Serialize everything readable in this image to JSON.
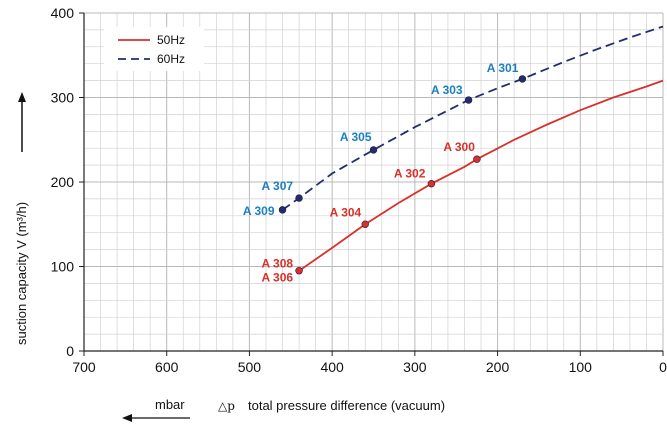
{
  "chart_data": {
    "type": "line",
    "xlabel_unit": "mbar",
    "xlabel_prefix": "△p",
    "xlabel": "total pressure difference (vacuum)",
    "ylabel": "suction capacity V (m³/h)",
    "xlim": [
      700,
      0
    ],
    "ylim": [
      0,
      400
    ],
    "x_ticks": [
      700,
      600,
      500,
      400,
      300,
      200,
      100,
      0
    ],
    "y_ticks": [
      0,
      100,
      200,
      300,
      400
    ],
    "grid": true,
    "legend_position": "top-left",
    "series": [
      {
        "name": "50Hz",
        "color": "#d9302b",
        "style": "solid",
        "x": [
          440,
          400,
          360,
          320,
          280,
          240,
          225,
          180,
          140,
          100,
          60,
          20,
          0
        ],
        "y": [
          95,
          122,
          150,
          175,
          198,
          218,
          227,
          250,
          268,
          285,
          300,
          313,
          320
        ],
        "points": [
          {
            "label": "A 308",
            "x": 440,
            "y": 95
          },
          {
            "label": "A 306",
            "x": 440,
            "y": 95
          },
          {
            "label": "A 304",
            "x": 360,
            "y": 150
          },
          {
            "label": "A 302",
            "x": 280,
            "y": 198
          },
          {
            "label": "A 300",
            "x": 225,
            "y": 227
          }
        ]
      },
      {
        "name": "60Hz",
        "color": "#232d6b",
        "style": "dashed",
        "x": [
          460,
          440,
          400,
          350,
          300,
          235,
          200,
          170,
          120,
          80,
          40,
          0
        ],
        "y": [
          167,
          181,
          210,
          238,
          265,
          297,
          311,
          322,
          342,
          357,
          371,
          384
        ],
        "points": [
          {
            "label": "A 309",
            "x": 460,
            "y": 167
          },
          {
            "label": "A 307",
            "x": 440,
            "y": 181
          },
          {
            "label": "A 305",
            "x": 350,
            "y": 238
          },
          {
            "label": "A 303",
            "x": 235,
            "y": 297
          },
          {
            "label": "A 301",
            "x": 170,
            "y": 322
          }
        ]
      }
    ]
  },
  "point_label_color": "#1a7fc1"
}
